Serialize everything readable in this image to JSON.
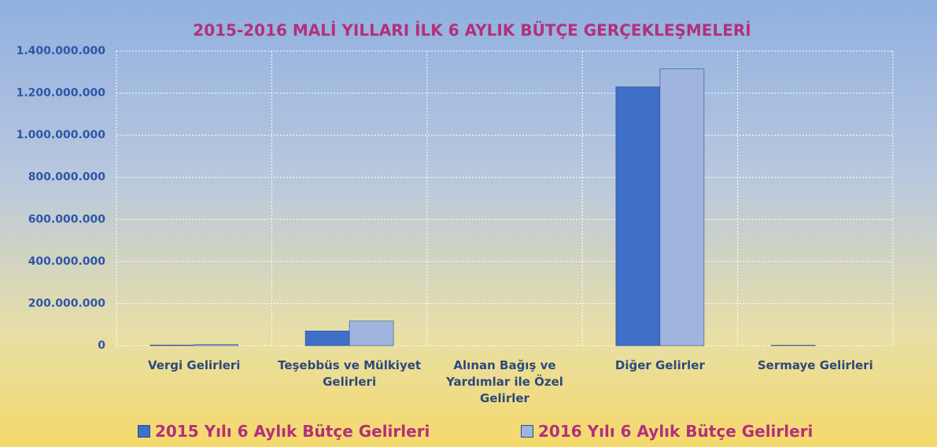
{
  "chart_data": {
    "type": "bar",
    "title": "2015-2016  MALİ YILLARI İLK 6 AYLIK BÜTÇE GERÇEKLEŞMELERİ",
    "categories": [
      "Vergi Gelirleri",
      "Teşebbüs ve Mülkiyet Gelirleri",
      "Alınan Bağış ve Yardımlar ile Özel Gelirler",
      "Diğer Gelirler",
      "Sermaye Gelirleri"
    ],
    "series": [
      {
        "name": "2015 Yılı 6 Aylık Bütçe Gelirleri",
        "color": "#3f6fc6",
        "values": [
          3000000,
          70000000,
          0,
          1230000000,
          2000000
        ]
      },
      {
        "name": "2016 Yılı 6 Aylık Bütçe Gelirleri",
        "color": "#9fb5de",
        "values": [
          5000000,
          117000000,
          0,
          1315000000,
          0
        ]
      }
    ],
    "ylim": [
      0,
      1400000000
    ],
    "yticks": [
      0,
      {
        "value": 200000000,
        "label": "200.000.000"
      },
      {
        "value": 400000000,
        "label": "400.000.000"
      },
      {
        "value": 600000000,
        "label": "600.000.000"
      },
      {
        "value": 800000000,
        "label": "800.000.000"
      },
      {
        "value": 1000000000,
        "label": "1.000.000.000"
      },
      {
        "value": 1200000000,
        "label": "1.200.000.000"
      },
      {
        "value": 1400000000,
        "label": "1.400.000.000"
      }
    ],
    "grid": true
  }
}
